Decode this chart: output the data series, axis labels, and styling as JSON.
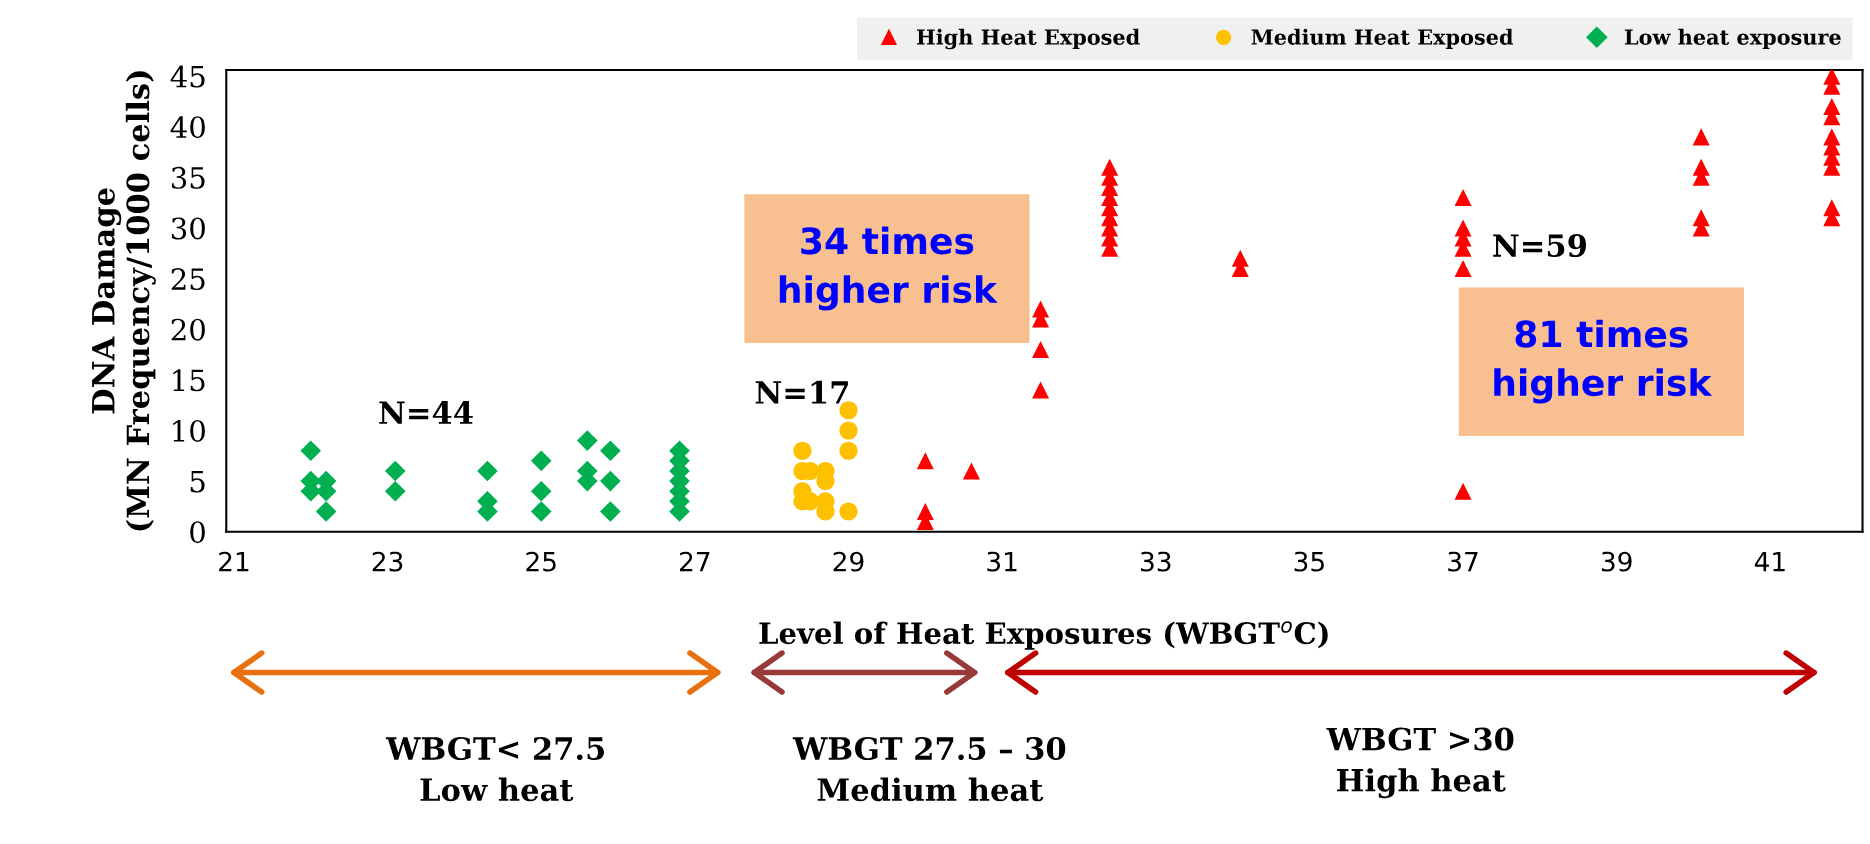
{
  "chart_data": {
    "type": "scatter",
    "xlabel": "Level of Heat Exposures (WBGT$^{o}$C)",
    "ylabel": "DNA Damage\n(MN Frequency/1000 cells)",
    "series": [
      {
        "name": "High Heat Exposed",
        "color": "#ff0000",
        "marker": "triangle",
        "x": [
          30.0,
          30.0,
          30.0,
          30.6,
          31.5,
          31.5,
          31.5,
          31.5,
          32.4,
          32.4,
          32.4,
          32.4,
          32.4,
          32.4,
          32.4,
          32.4,
          32.4,
          34.1,
          34.1,
          37.0,
          37.0,
          37.0,
          37.0,
          37.0,
          37.0,
          40.1,
          40.1,
          40.1,
          40.1,
          40.1,
          41.8,
          41.8,
          41.8,
          41.8,
          41.8,
          41.8,
          41.8,
          41.8,
          41.8,
          41.8
        ],
        "values": [
          7,
          2,
          1,
          6,
          14,
          18,
          21,
          22,
          28,
          29,
          30,
          31,
          32,
          33,
          34,
          35,
          36,
          27,
          26,
          33,
          30,
          29,
          28,
          26,
          4,
          39,
          36,
          35,
          31,
          30,
          45,
          44,
          42,
          41,
          39,
          38,
          37,
          36,
          32,
          31
        ]
      },
      {
        "name": "Medium Heat Exposed",
        "color": "#ffc000",
        "marker": "circle",
        "x": [
          28.4,
          28.4,
          28.4,
          28.4,
          28.5,
          28.5,
          28.7,
          28.7,
          28.7,
          28.7,
          29.0,
          29.0,
          29.0,
          29.0
        ],
        "values": [
          8,
          6,
          4,
          3,
          6,
          3,
          6,
          5,
          3,
          2,
          12,
          10,
          8,
          2
        ]
      },
      {
        "name": "Low heat exposure",
        "color": "#00b050",
        "marker": "diamond",
        "x": [
          22.0,
          22.0,
          22.0,
          22.2,
          22.2,
          22.2,
          23.1,
          23.1,
          24.3,
          24.3,
          24.3,
          25.0,
          25.0,
          25.0,
          25.6,
          25.6,
          25.6,
          25.9,
          25.9,
          25.9,
          26.8,
          26.8,
          26.8,
          26.8,
          26.8,
          26.8,
          26.8
        ],
        "values": [
          8,
          5,
          4,
          5,
          4,
          2,
          6,
          4,
          6,
          3,
          2,
          7,
          4,
          2,
          9,
          6,
          5,
          8,
          5,
          2,
          8,
          7,
          6,
          5,
          4,
          3,
          2
        ]
      }
    ],
    "xlim": [
      20.9,
      42.2
    ],
    "xticks": [
      21,
      23,
      25,
      27,
      29,
      31,
      33,
      35,
      37,
      39,
      41
    ],
    "ylim": [
      0,
      45.6
    ],
    "yticks": [
      0,
      5,
      10,
      15,
      20,
      25,
      30,
      35,
      40,
      45
    ],
    "grid": false,
    "legend": "top right",
    "annotations": [
      "N=44",
      "N=17",
      "N=59",
      "34 times\nhigher risk",
      "81 times\nhigher risk",
      "WBGT< 27.5\nLow heat",
      "WBGT 27.5 – 30\nMedium heat",
      "WBGT >30\nHigh heat"
    ]
  }
}
